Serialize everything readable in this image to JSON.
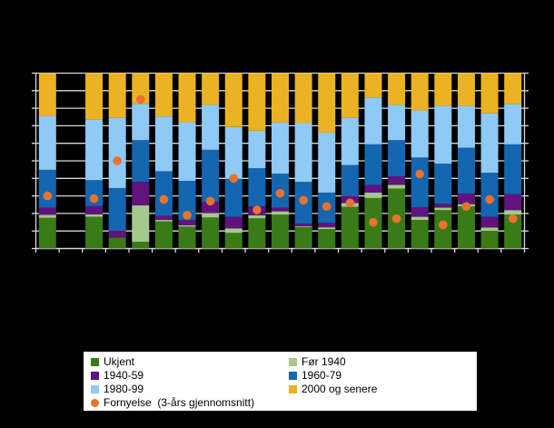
{
  "page": {
    "background": "#000000",
    "title": ""
  },
  "colors": {
    "grid": "#d9d9d9",
    "axis": "#d9d9d9",
    "legend_background": "#ffffff",
    "legend_text": "#000000"
  },
  "chart_data": {
    "type": "bar",
    "variant": "100-percent-stacked-columns-with-point-overlay",
    "title": "",
    "xlabel": "",
    "ylabel": "",
    "axis_tick_labels_visible": false,
    "grid": true,
    "legend_position": "bottom",
    "n_categories": 21,
    "categories": [
      "",
      "",
      "",
      "",
      "",
      "",
      "",
      "",
      "",
      "",
      "",
      "",
      "",
      "",
      "",
      "",
      "",
      "",
      "",
      "",
      ""
    ],
    "empty_category_indices": [
      1
    ],
    "y_axis": {
      "min": 0,
      "max": 100,
      "grid_step": 10
    },
    "series": [
      {
        "name": "Ukjent",
        "color": "#3a7a17",
        "values": [
          17.5,
          null,
          18.1,
          6.3,
          3.8,
          15.5,
          12.5,
          17.7,
          8.9,
          17.2,
          19.3,
          12.3,
          11.1,
          23.8,
          28.8,
          34.2,
          16.3,
          21.9,
          24.1,
          10.2,
          19.3
        ]
      },
      {
        "name": "Før 1940",
        "color": "#a5c98c",
        "values": [
          1.7,
          null,
          1.4,
          0,
          20.8,
          0.8,
          0.8,
          2.5,
          2.6,
          1.7,
          1.9,
          0.5,
          1.0,
          2.1,
          3.1,
          2.1,
          1.8,
          1.4,
          1.2,
          1.8,
          2.6
        ]
      },
      {
        "name": "1940-59",
        "color": "#611380",
        "values": [
          4.1,
          null,
          4.7,
          4.0,
          13.4,
          2.3,
          2.9,
          6.5,
          6.6,
          5.2,
          2.1,
          1.4,
          2.6,
          4.3,
          4.4,
          4.8,
          5.5,
          2.2,
          6.1,
          6.1,
          9.2
        ]
      },
      {
        "name": "1960-79",
        "color": "#1466b0",
        "values": [
          21.6,
          null,
          14.8,
          24.2,
          23.8,
          25.5,
          22.4,
          29.6,
          21.7,
          21.7,
          19.4,
          23.8,
          17.2,
          17.4,
          23.1,
          20.7,
          28.3,
          22.9,
          26.1,
          25.1,
          28.3
        ]
      },
      {
        "name": "1980-99",
        "color": "#8fc9f5",
        "values": [
          30.5,
          null,
          34.4,
          40.0,
          20.5,
          31.2,
          33.4,
          25.6,
          29.5,
          21.4,
          29.2,
          33.5,
          34.2,
          26.9,
          26.7,
          20.1,
          26.9,
          33.0,
          23.9,
          33.9,
          22.9
        ]
      },
      {
        "name": "2000 og senere",
        "color": "#ebb223",
        "values": [
          24.6,
          null,
          26.6,
          25.5,
          17.7,
          24.7,
          28.0,
          18.1,
          30.7,
          32.8,
          28.1,
          28.5,
          33.9,
          25.5,
          13.9,
          18.1,
          21.2,
          18.6,
          18.6,
          22.9,
          17.7
        ]
      }
    ],
    "points_series": {
      "name": "Fornyelse  (3-års gjennomsnitt)",
      "color": "#e9722f",
      "values": [
        30,
        null,
        28.5,
        50,
        85,
        28,
        19,
        27,
        40,
        22,
        31.5,
        27.5,
        24,
        26,
        15,
        17,
        42.5,
        13.5,
        24,
        28,
        17
      ]
    }
  },
  "legend": {
    "items": [
      {
        "label": "Ukjent",
        "color": "#3a7a17",
        "shape": "square"
      },
      {
        "label": "Før 1940",
        "color": "#a5c98c",
        "shape": "square"
      },
      {
        "label": "1940-59",
        "color": "#611380",
        "shape": "square"
      },
      {
        "label": "1960-79",
        "color": "#1466b0",
        "shape": "square"
      },
      {
        "label": "1980-99",
        "color": "#8fc9f5",
        "shape": "square"
      },
      {
        "label": "2000 og senere",
        "color": "#ebb223",
        "shape": "square"
      },
      {
        "label": "Fornyelse  (3-års gjennomsnitt)",
        "color": "#e9722f",
        "shape": "circle"
      }
    ]
  }
}
